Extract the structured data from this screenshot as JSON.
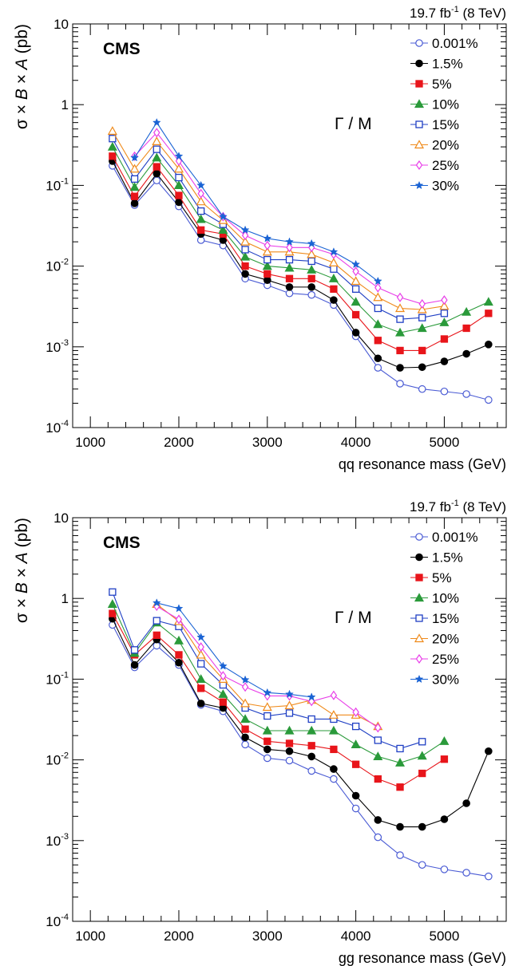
{
  "chart_data": [
    {
      "type": "line",
      "lumi_label": "19.7 fb",
      "lumi_sup": "-1",
      "lumi_energy": "(8 TeV)",
      "cms_label": "CMS",
      "annotation": "Γ / M",
      "xlabel": "qq resonance mass (GeV)",
      "ylabel_parts": [
        "σ × ",
        "B",
        " × ",
        "A",
        " (pb)"
      ],
      "xlim": [
        800,
        5700
      ],
      "ylim": [
        0.0001,
        10
      ],
      "yscale": "log",
      "x_ticks": [
        "1000",
        "2000",
        "3000",
        "4000",
        "5000"
      ],
      "y_ticks": [
        {
          "base": "10",
          "exp": "-4",
          "value": 0.0001
        },
        {
          "base": "10",
          "exp": "-3",
          "value": 0.001
        },
        {
          "base": "10",
          "exp": "-2",
          "value": 0.01
        },
        {
          "base": "10",
          "exp": "-1",
          "value": 0.1
        },
        {
          "base": "1",
          "exp": "",
          "value": 1
        },
        {
          "base": "10",
          "exp": "",
          "value": 10
        }
      ],
      "legend_position": "top-right",
      "series": [
        {
          "name": "0.001%",
          "color": "#4a5bd4",
          "marker": "circle-open",
          "x": [
            1250,
            1500,
            1750,
            2000,
            2250,
            2500,
            2750,
            3000,
            3250,
            3500,
            3750,
            4000,
            4250,
            4500,
            4750,
            5000,
            5250,
            5500
          ],
          "y": [
            0.175,
            0.057,
            0.115,
            0.055,
            0.021,
            0.018,
            0.007,
            0.0058,
            0.0046,
            0.0044,
            0.0033,
            0.00135,
            0.00055,
            0.00035,
            0.0003,
            0.00028,
            0.00026,
            0.00022
          ]
        },
        {
          "name": "1.5%",
          "color": "#000000",
          "marker": "circle-filled",
          "x": [
            1250,
            1500,
            1750,
            2000,
            2250,
            2500,
            2750,
            3000,
            3250,
            3500,
            3750,
            4000,
            4250,
            4500,
            4750,
            5000,
            5250,
            5500
          ],
          "y": [
            0.2,
            0.06,
            0.14,
            0.062,
            0.025,
            0.021,
            0.008,
            0.0067,
            0.0055,
            0.0055,
            0.0038,
            0.0015,
            0.00072,
            0.00055,
            0.00056,
            0.00066,
            0.00082,
            0.00107
          ]
        },
        {
          "name": "5%",
          "color": "#e8151a",
          "marker": "square-filled",
          "x": [
            1250,
            1500,
            1750,
            2000,
            2250,
            2500,
            2750,
            3000,
            3250,
            3500,
            3750,
            4000,
            4250,
            4500,
            4750,
            5000,
            5250,
            5500
          ],
          "y": [
            0.23,
            0.073,
            0.17,
            0.075,
            0.028,
            0.025,
            0.01,
            0.008,
            0.007,
            0.007,
            0.0052,
            0.0025,
            0.0012,
            0.0009,
            0.0009,
            0.00125,
            0.0017,
            0.0026
          ]
        },
        {
          "name": "10%",
          "color": "#2a9a3a",
          "marker": "triangle-filled",
          "x": [
            1250,
            1500,
            1750,
            2000,
            2250,
            2500,
            2750,
            3000,
            3250,
            3500,
            3750,
            4000,
            4250,
            4500,
            4750,
            5000,
            5250,
            5500
          ],
          "y": [
            0.3,
            0.095,
            0.22,
            0.1,
            0.038,
            0.028,
            0.013,
            0.01,
            0.0095,
            0.009,
            0.007,
            0.0036,
            0.0019,
            0.0015,
            0.0017,
            0.002,
            0.0027,
            0.0036
          ]
        },
        {
          "name": "15%",
          "color": "#1f3fc4",
          "marker": "square-open",
          "x": [
            1250,
            1500,
            1750,
            2000,
            2250,
            2500,
            2750,
            3000,
            3250,
            3500,
            3750,
            4000,
            4250,
            4500,
            4750,
            5000
          ],
          "y": [
            0.38,
            0.12,
            0.28,
            0.125,
            0.048,
            0.033,
            0.016,
            0.012,
            0.012,
            0.0115,
            0.0092,
            0.0052,
            0.003,
            0.0022,
            0.0023,
            0.0026
          ]
        },
        {
          "name": "20%",
          "color": "#ef8a1a",
          "marker": "triangle-open",
          "x": [
            1250,
            1500,
            1750,
            2000,
            2250,
            2500,
            2750,
            3000,
            3250,
            3500,
            3750,
            4000,
            4250,
            4500,
            4750,
            5000
          ],
          "y": [
            0.47,
            0.16,
            0.35,
            0.16,
            0.063,
            0.037,
            0.02,
            0.015,
            0.015,
            0.014,
            0.011,
            0.0065,
            0.0041,
            0.003,
            0.0029,
            0.0032
          ]
        },
        {
          "name": "25%",
          "color": "#e83de8",
          "marker": "diamond-open",
          "x": [
            1500,
            1750,
            2000,
            2250,
            2500,
            2750,
            3000,
            3250,
            3500,
            3750,
            4000,
            4250,
            4500,
            4750,
            5000
          ],
          "y": [
            0.23,
            0.45,
            0.2,
            0.079,
            0.041,
            0.024,
            0.018,
            0.017,
            0.017,
            0.014,
            0.0086,
            0.0054,
            0.0041,
            0.0034,
            0.0038
          ]
        },
        {
          "name": "30%",
          "color": "#1a63d4",
          "marker": "star",
          "x": [
            1500,
            1750,
            2000,
            2250,
            2500,
            2750,
            3000,
            3250,
            3500,
            3750,
            4000,
            4250
          ],
          "y": [
            0.22,
            0.6,
            0.23,
            0.1,
            0.041,
            0.028,
            0.022,
            0.02,
            0.019,
            0.015,
            0.0105,
            0.0065
          ]
        }
      ]
    },
    {
      "type": "line",
      "lumi_label": "19.7 fb",
      "lumi_sup": "-1",
      "lumi_energy": "(8 TeV)",
      "cms_label": "CMS",
      "annotation": "Γ / M",
      "xlabel": "gg resonance mass (GeV)",
      "ylabel_parts": [
        "σ × ",
        "B",
        " × ",
        "A",
        " (pb)"
      ],
      "xlim": [
        800,
        5700
      ],
      "ylim": [
        0.0001,
        10
      ],
      "yscale": "log",
      "x_ticks": [
        "1000",
        "2000",
        "3000",
        "4000",
        "5000"
      ],
      "y_ticks": [
        {
          "base": "10",
          "exp": "-4",
          "value": 0.0001
        },
        {
          "base": "10",
          "exp": "-3",
          "value": 0.001
        },
        {
          "base": "10",
          "exp": "-2",
          "value": 0.01
        },
        {
          "base": "10",
          "exp": "-1",
          "value": 0.1
        },
        {
          "base": "1",
          "exp": "",
          "value": 1
        },
        {
          "base": "10",
          "exp": "",
          "value": 10
        }
      ],
      "legend_position": "top-right",
      "series": [
        {
          "name": "0.001%",
          "color": "#4a5bd4",
          "marker": "circle-open",
          "x": [
            1250,
            1500,
            1750,
            2000,
            2250,
            2500,
            2750,
            3000,
            3250,
            3500,
            3750,
            4000,
            4250,
            4500,
            4750,
            5000,
            5250,
            5500
          ],
          "y": [
            0.47,
            0.14,
            0.26,
            0.15,
            0.048,
            0.04,
            0.0155,
            0.0105,
            0.0098,
            0.0073,
            0.0058,
            0.0025,
            0.0011,
            0.00066,
            0.0005,
            0.00044,
            0.0004,
            0.00036
          ]
        },
        {
          "name": "1.5%",
          "color": "#000000",
          "marker": "circle-filled",
          "x": [
            1250,
            1500,
            1750,
            2000,
            2250,
            2500,
            2750,
            3000,
            3250,
            3500,
            3750,
            4000,
            4250,
            4500,
            4750,
            5000,
            5250,
            5500
          ],
          "y": [
            0.56,
            0.15,
            0.31,
            0.16,
            0.05,
            0.044,
            0.019,
            0.0135,
            0.0128,
            0.011,
            0.0077,
            0.0036,
            0.0018,
            0.00148,
            0.00148,
            0.00184,
            0.0029,
            0.0128
          ]
        },
        {
          "name": "5%",
          "color": "#e8151a",
          "marker": "square-filled",
          "x": [
            1250,
            1500,
            1750,
            2000,
            2250,
            2500,
            2750,
            3000,
            3250,
            3500,
            3750,
            4000,
            4250,
            4500,
            4750,
            5000
          ],
          "y": [
            0.65,
            0.2,
            0.35,
            0.2,
            0.077,
            0.052,
            0.024,
            0.017,
            0.016,
            0.015,
            0.0135,
            0.0088,
            0.0058,
            0.0046,
            0.0068,
            0.0102
          ]
        },
        {
          "name": "10%",
          "color": "#2a9a3a",
          "marker": "triangle-filled",
          "x": [
            1250,
            1500,
            1750,
            2000,
            2250,
            2500,
            2750,
            3000,
            3250,
            3500,
            3750,
            4000,
            4250,
            4500,
            4750,
            5000
          ],
          "y": [
            0.85,
            0.21,
            0.5,
            0.3,
            0.1,
            0.065,
            0.032,
            0.023,
            0.023,
            0.023,
            0.023,
            0.0155,
            0.011,
            0.0092,
            0.0112,
            0.017
          ]
        },
        {
          "name": "15%",
          "color": "#1f3fc4",
          "marker": "square-open",
          "x": [
            1250,
            1500,
            1750,
            2000,
            2250,
            2500,
            2750,
            3000,
            3250,
            3500,
            3750,
            4000,
            4250,
            4500,
            4750
          ],
          "y": [
            1.2,
            0.23,
            0.53,
            0.45,
            0.155,
            0.085,
            0.044,
            0.035,
            0.038,
            0.032,
            0.032,
            0.026,
            0.0175,
            0.0138,
            0.0168
          ]
        },
        {
          "name": "20%",
          "color": "#ef8a1a",
          "marker": "triangle-open",
          "x": [
            1750,
            2000,
            2250,
            2500,
            2750,
            3000,
            3250,
            3500,
            3750,
            4000,
            4250
          ],
          "y": [
            0.85,
            0.52,
            0.2,
            0.1,
            0.05,
            0.045,
            0.047,
            0.055,
            0.036,
            0.036,
            0.026
          ]
        },
        {
          "name": "25%",
          "color": "#e83de8",
          "marker": "diamond-open",
          "x": [
            1750,
            2000,
            2250,
            2500,
            2750,
            3000,
            3250,
            3500,
            3750,
            4000,
            4250
          ],
          "y": [
            0.8,
            0.55,
            0.25,
            0.11,
            0.08,
            0.062,
            0.062,
            0.053,
            0.063,
            0.039,
            0.025
          ]
        },
        {
          "name": "30%",
          "color": "#1a63d4",
          "marker": "star",
          "x": [
            1750,
            2000,
            2250,
            2500,
            2750,
            3000,
            3250,
            3500
          ],
          "y": [
            0.88,
            0.75,
            0.33,
            0.145,
            0.098,
            0.068,
            0.065,
            0.06
          ]
        }
      ]
    }
  ]
}
